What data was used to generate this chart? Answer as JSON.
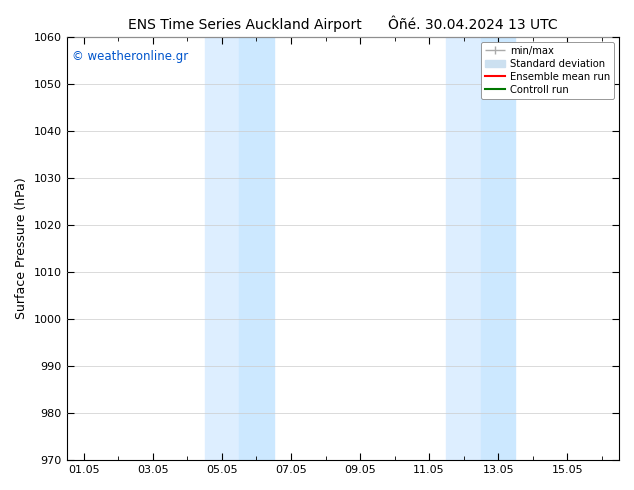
{
  "title_left": "ENS Time Series Auckland Airport",
  "title_right": "Ôñé. 30.04.2024 13 UTC",
  "ylabel": "Surface Pressure (hPa)",
  "ylim": [
    970,
    1060
  ],
  "yticks": [
    970,
    980,
    990,
    1000,
    1010,
    1020,
    1030,
    1040,
    1050,
    1060
  ],
  "xtick_labels": [
    "01.05",
    "03.05",
    "05.05",
    "07.05",
    "09.05",
    "11.05",
    "13.05",
    "15.05"
  ],
  "xtick_positions": [
    0,
    2,
    4,
    6,
    8,
    10,
    12,
    14
  ],
  "xlim": [
    -0.5,
    15.5
  ],
  "watermark": "© weatheronline.gr",
  "watermark_color": "#0055cc",
  "shaded_regions": [
    {
      "x_start": 3.5,
      "x_end": 4.5,
      "color": "#ddeeff"
    },
    {
      "x_start": 4.5,
      "x_end": 5.5,
      "color": "#cce8ff"
    },
    {
      "x_start": 10.5,
      "x_end": 11.5,
      "color": "#ddeeff"
    },
    {
      "x_start": 11.5,
      "x_end": 12.5,
      "color": "#cce8ff"
    }
  ],
  "legend_entries": [
    {
      "label": "min/max",
      "color": "#aaaaaa",
      "lw": 1.0
    },
    {
      "label": "Standard deviation",
      "color": "#cce0f0",
      "lw": 6
    },
    {
      "label": "Ensemble mean run",
      "color": "#ff0000",
      "lw": 1.5
    },
    {
      "label": "Controll run",
      "color": "#007700",
      "lw": 1.5
    }
  ],
  "bg_color": "#ffffff",
  "grid_color": "#cccccc",
  "title_fontsize": 10,
  "axis_fontsize": 9,
  "tick_fontsize": 8,
  "minor_tick_positions": [
    1,
    3,
    5,
    7,
    9,
    11,
    13,
    15
  ]
}
